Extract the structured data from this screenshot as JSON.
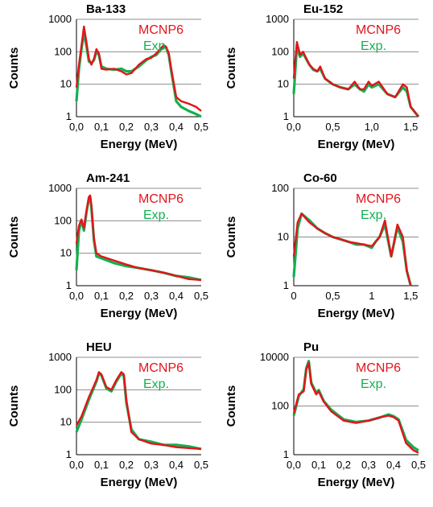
{
  "colors": {
    "mcnp": "#e3141b",
    "exp": "#13b04f",
    "grid": "#8c8c8c"
  },
  "chart_data": [
    {
      "type": "line",
      "title": "Ba-133",
      "xlabel": "Energy (MeV)",
      "ylabel": "Counts",
      "xlim": [
        0,
        0.5
      ],
      "ylim": [
        1,
        1000
      ],
      "yscale": "log",
      "grid": true,
      "legend": "top-right",
      "xticks": [
        0,
        0.1,
        0.2,
        0.3,
        0.4,
        0.5
      ],
      "xtick_labels": [
        "0,0",
        "0,1",
        "0,2",
        "0,3",
        "0,4",
        "0,5"
      ],
      "yticks": [
        1,
        10,
        100,
        1000
      ],
      "ytick_labels": [
        "1",
        "10",
        "100",
        "1000"
      ],
      "series": [
        {
          "name": "MCNP6",
          "x": [
            0.0,
            0.01,
            0.02,
            0.03,
            0.04,
            0.05,
            0.06,
            0.07,
            0.08,
            0.09,
            0.1,
            0.12,
            0.15,
            0.18,
            0.2,
            0.22,
            0.25,
            0.28,
            0.3,
            0.32,
            0.35,
            0.36,
            0.37,
            0.38,
            0.4,
            0.42,
            0.45,
            0.48,
            0.5
          ],
          "y": [
            8,
            40,
            150,
            600,
            200,
            60,
            40,
            60,
            120,
            90,
            30,
            28,
            30,
            25,
            20,
            22,
            40,
            60,
            65,
            90,
            160,
            140,
            90,
            30,
            4,
            3,
            2.5,
            2,
            1.5
          ]
        },
        {
          "name": "Exp.",
          "x": [
            0.0,
            0.01,
            0.02,
            0.03,
            0.04,
            0.05,
            0.06,
            0.07,
            0.08,
            0.09,
            0.1,
            0.12,
            0.15,
            0.18,
            0.2,
            0.22,
            0.25,
            0.28,
            0.3,
            0.32,
            0.35,
            0.36,
            0.37,
            0.38,
            0.4,
            0.42,
            0.45,
            0.48,
            0.5
          ],
          "y": [
            3,
            30,
            120,
            400,
            150,
            50,
            45,
            55,
            100,
            80,
            35,
            30,
            28,
            30,
            25,
            25,
            35,
            55,
            70,
            80,
            150,
            130,
            80,
            25,
            3,
            2,
            1.5,
            1.2,
            1
          ]
        }
      ]
    },
    {
      "type": "line",
      "title": "Eu-152",
      "xlabel": "Energy (MeV)",
      "ylabel": "Counts",
      "xlim": [
        0,
        1.6
      ],
      "ylim": [
        1,
        1000
      ],
      "yscale": "log",
      "grid": true,
      "legend": "top-right",
      "xticks": [
        0,
        0.5,
        1.0,
        1.5
      ],
      "xtick_labels": [
        "0,0",
        "0,5",
        "1,0",
        "1,5"
      ],
      "yticks": [
        1,
        10,
        100,
        1000
      ],
      "ytick_labels": [
        "1",
        "10",
        "100",
        "1000"
      ],
      "series": [
        {
          "name": "MCNP6",
          "x": [
            0.0,
            0.04,
            0.08,
            0.12,
            0.2,
            0.25,
            0.3,
            0.34,
            0.4,
            0.5,
            0.6,
            0.7,
            0.78,
            0.85,
            0.9,
            0.96,
            1.0,
            1.09,
            1.2,
            1.3,
            1.4,
            1.45,
            1.5,
            1.6
          ],
          "y": [
            15,
            200,
            80,
            100,
            40,
            30,
            25,
            35,
            15,
            10,
            8,
            7,
            12,
            7,
            7,
            12,
            9,
            12,
            5,
            4,
            10,
            8,
            2,
            1
          ]
        },
        {
          "name": "Exp.",
          "x": [
            0.0,
            0.04,
            0.08,
            0.12,
            0.2,
            0.25,
            0.3,
            0.34,
            0.4,
            0.5,
            0.6,
            0.7,
            0.78,
            0.85,
            0.9,
            0.96,
            1.0,
            1.09,
            1.2,
            1.3,
            1.4,
            1.45,
            1.5,
            1.6
          ],
          "y": [
            5,
            150,
            70,
            90,
            40,
            28,
            25,
            30,
            15,
            10,
            8,
            7,
            10,
            7,
            6,
            10,
            8,
            10,
            5,
            4,
            8,
            6,
            2,
            1
          ]
        }
      ]
    },
    {
      "type": "line",
      "title": "Am-241",
      "xlabel": "Energy (MeV)",
      "ylabel": "Counts",
      "xlim": [
        0,
        0.5
      ],
      "ylim": [
        1,
        1000
      ],
      "yscale": "log",
      "grid": true,
      "legend": "top-right",
      "xticks": [
        0,
        0.1,
        0.2,
        0.3,
        0.4,
        0.5
      ],
      "xtick_labels": [
        "0,0",
        "0,1",
        "0,2",
        "0,3",
        "0,4",
        "0,5"
      ],
      "yticks": [
        1,
        10,
        100,
        1000
      ],
      "ytick_labels": [
        "1",
        "10",
        "100",
        "1000"
      ],
      "series": [
        {
          "name": "MCNP6",
          "x": [
            0.0,
            0.01,
            0.02,
            0.03,
            0.04,
            0.05,
            0.055,
            0.06,
            0.07,
            0.08,
            0.1,
            0.15,
            0.2,
            0.25,
            0.3,
            0.35,
            0.4,
            0.45,
            0.5
          ],
          "y": [
            20,
            70,
            110,
            60,
            200,
            550,
            600,
            300,
            30,
            10,
            8,
            6,
            4.5,
            3.5,
            3,
            2.5,
            2,
            1.6,
            1.5
          ]
        },
        {
          "name": "Exp.",
          "x": [
            0.0,
            0.01,
            0.02,
            0.03,
            0.04,
            0.05,
            0.055,
            0.06,
            0.07,
            0.08,
            0.1,
            0.15,
            0.2,
            0.25,
            0.3,
            0.35,
            0.4,
            0.45,
            0.5
          ],
          "y": [
            3,
            50,
            100,
            50,
            180,
            500,
            550,
            250,
            25,
            8,
            7,
            5,
            4,
            3.5,
            3,
            2.5,
            2,
            1.8,
            1.5
          ]
        }
      ]
    },
    {
      "type": "line",
      "title": "Co-60",
      "xlabel": "Energy (MeV)",
      "ylabel": "Counts",
      "xlim": [
        0,
        1.6
      ],
      "ylim": [
        1,
        100
      ],
      "yscale": "log",
      "grid": true,
      "legend": "top-right",
      "xticks": [
        0,
        0.5,
        1.0,
        1.5
      ],
      "xtick_labels": [
        "0",
        "0,5",
        "1",
        "1,5"
      ],
      "yticks": [
        1,
        10,
        100
      ],
      "ytick_labels": [
        "1",
        "10",
        "100"
      ],
      "series": [
        {
          "name": "MCNP6",
          "x": [
            0.0,
            0.05,
            0.1,
            0.2,
            0.3,
            0.4,
            0.5,
            0.6,
            0.7,
            0.8,
            0.9,
            1.0,
            1.05,
            1.1,
            1.17,
            1.25,
            1.33,
            1.4,
            1.45,
            1.5
          ],
          "y": [
            4,
            20,
            30,
            20,
            15,
            12,
            10,
            9,
            8,
            7.5,
            7,
            6.5,
            8,
            10,
            22,
            4,
            18,
            10,
            2,
            1
          ]
        },
        {
          "name": "Exp.",
          "x": [
            0.0,
            0.05,
            0.1,
            0.2,
            0.3,
            0.4,
            0.5,
            0.6,
            0.7,
            0.8,
            0.9,
            1.0,
            1.05,
            1.1,
            1.17,
            1.25,
            1.33,
            1.4,
            1.45,
            1.5
          ],
          "y": [
            1.5,
            15,
            30,
            22,
            15,
            12,
            10,
            9,
            8,
            7,
            7,
            6,
            8,
            10,
            18,
            4,
            16,
            8,
            2,
            1
          ]
        }
      ]
    },
    {
      "type": "line",
      "title": "HEU",
      "xlabel": "Energy (MeV)",
      "ylabel": "Counts",
      "xlim": [
        0,
        0.5
      ],
      "ylim": [
        1,
        1000
      ],
      "yscale": "log",
      "grid": true,
      "legend": "top-right",
      "xticks": [
        0,
        0.1,
        0.2,
        0.3,
        0.4,
        0.5
      ],
      "xtick_labels": [
        "0,0",
        "0,1",
        "0,2",
        "0,3",
        "0,4",
        "0,5"
      ],
      "yticks": [
        1,
        10,
        100,
        1000
      ],
      "ytick_labels": [
        "1",
        "10",
        "100",
        "1000"
      ],
      "series": [
        {
          "name": "MCNP6",
          "x": [
            0.0,
            0.02,
            0.05,
            0.08,
            0.09,
            0.1,
            0.12,
            0.14,
            0.16,
            0.18,
            0.19,
            0.2,
            0.22,
            0.25,
            0.3,
            0.35,
            0.4,
            0.45,
            0.5
          ],
          "y": [
            8,
            15,
            60,
            200,
            350,
            300,
            120,
            100,
            200,
            350,
            300,
            50,
            5,
            3,
            2.2,
            2,
            1.7,
            1.6,
            1.5
          ]
        },
        {
          "name": "Exp.",
          "x": [
            0.0,
            0.02,
            0.05,
            0.08,
            0.09,
            0.1,
            0.12,
            0.14,
            0.16,
            0.18,
            0.19,
            0.2,
            0.22,
            0.25,
            0.3,
            0.35,
            0.4,
            0.45,
            0.5
          ],
          "y": [
            5,
            12,
            50,
            180,
            320,
            280,
            110,
            90,
            180,
            320,
            260,
            40,
            6,
            3,
            2.5,
            2,
            2,
            1.8,
            1.5
          ]
        }
      ]
    },
    {
      "type": "line",
      "title": "Pu",
      "xlabel": "Energy (MeV)",
      "ylabel": "Counts",
      "xlim": [
        0,
        0.5
      ],
      "ylim": [
        1,
        10000
      ],
      "yscale": "log",
      "grid": true,
      "legend": "top-right",
      "xticks": [
        0,
        0.1,
        0.2,
        0.3,
        0.4,
        0.5
      ],
      "xtick_labels": [
        "0,0",
        "0,1",
        "0,2",
        "0,3",
        "0,4",
        "0,5"
      ],
      "yticks": [
        1,
        100,
        10000
      ],
      "ytick_labels": [
        "1",
        "100",
        "10000"
      ],
      "series": [
        {
          "name": "MCNP6",
          "x": [
            0.0,
            0.02,
            0.04,
            0.05,
            0.06,
            0.07,
            0.09,
            0.1,
            0.12,
            0.15,
            0.2,
            0.25,
            0.3,
            0.35,
            0.38,
            0.4,
            0.42,
            0.45,
            0.48,
            0.5
          ],
          "y": [
            50,
            300,
            400,
            3000,
            6000,
            800,
            300,
            400,
            150,
            60,
            25,
            20,
            25,
            35,
            40,
            35,
            25,
            3,
            1.5,
            1.2
          ]
        },
        {
          "name": "Exp.",
          "x": [
            0.0,
            0.02,
            0.04,
            0.05,
            0.06,
            0.07,
            0.09,
            0.1,
            0.12,
            0.15,
            0.2,
            0.25,
            0.3,
            0.35,
            0.38,
            0.4,
            0.42,
            0.45,
            0.48,
            0.5
          ],
          "y": [
            40,
            250,
            500,
            3500,
            7000,
            900,
            350,
            450,
            160,
            70,
            28,
            22,
            25,
            35,
            45,
            38,
            28,
            4,
            2,
            1.5
          ]
        }
      ]
    }
  ]
}
